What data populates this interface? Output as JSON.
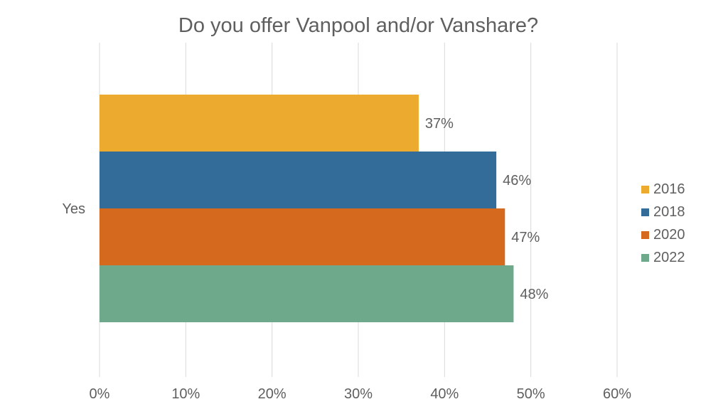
{
  "chart_data": {
    "type": "bar",
    "orientation": "horizontal",
    "title": "Do you offer Vanpool and/or Vanshare?",
    "categories": [
      "Yes"
    ],
    "series": [
      {
        "name": "2016",
        "values": [
          37
        ],
        "label": "37%",
        "color": "#ECAA2F"
      },
      {
        "name": "2018",
        "values": [
          46
        ],
        "label": "46%",
        "color": "#336B99"
      },
      {
        "name": "2020",
        "values": [
          47
        ],
        "label": "47%",
        "color": "#D56A1E"
      },
      {
        "name": "2022",
        "values": [
          48
        ],
        "label": "48%",
        "color": "#6EA98C"
      }
    ],
    "xlim": [
      0,
      60
    ],
    "x_ticks": [
      "0%",
      "10%",
      "20%",
      "30%",
      "40%",
      "50%",
      "60%"
    ],
    "grid": "vertical",
    "legend": "right"
  }
}
